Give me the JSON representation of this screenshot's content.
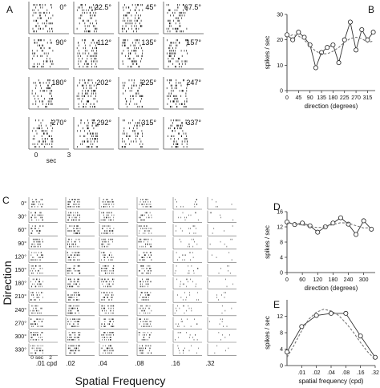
{
  "panels": {
    "A": {
      "letter": "A",
      "angles": [
        "0°",
        "22.5°",
        "45°",
        "67.5°",
        "90°",
        "112°",
        "135°",
        "157°",
        "180°",
        "202°",
        "225°",
        "247°",
        "270°",
        "292°",
        "315°",
        "337°"
      ],
      "time_axis": {
        "start": "0",
        "label": "sec",
        "end": "3"
      }
    },
    "C": {
      "letter": "C",
      "rows": [
        "0°",
        "30°",
        "60°",
        "90°",
        "120°",
        "150°",
        "180°",
        "210°",
        "240°",
        "270°",
        "300°",
        "330°"
      ],
      "cols": [
        ".01 cpd",
        ".02",
        ".04",
        ".08",
        ".16",
        ".32"
      ],
      "ylabel": "Direction",
      "xlabel": "Spatial Frequency",
      "time_axis": {
        "start": "0",
        "label": "sec",
        "end": "2"
      }
    },
    "B": {
      "letter": "B"
    },
    "D": {
      "letter": "D"
    },
    "E": {
      "letter": "E"
    }
  },
  "chart_data": [
    {
      "panel": "B",
      "type": "line",
      "xlabel": "direction (degrees)",
      "ylabel": "spikes / sec",
      "xlim": [
        0,
        345
      ],
      "ylim": [
        0,
        30
      ],
      "xticks": [
        0,
        45,
        90,
        135,
        180,
        225,
        270,
        315
      ],
      "yticks": [
        0,
        10,
        20,
        30
      ],
      "series": [
        {
          "style": "solid-markers",
          "x": [
            0,
            22.5,
            45,
            67.5,
            90,
            112.5,
            135,
            157.5,
            180,
            202.5,
            225,
            247.5,
            270,
            292.5,
            315,
            337.5
          ],
          "y": [
            22,
            20,
            23,
            21,
            18,
            9,
            15,
            17,
            18,
            11,
            20,
            27,
            16,
            24,
            20,
            23
          ]
        },
        {
          "style": "dashed-fit",
          "x": [
            0,
            22.5,
            45,
            67.5,
            90,
            112.5,
            135,
            157.5,
            180,
            202.5,
            225,
            247.5,
            270,
            292.5,
            315,
            337.5
          ],
          "y": [
            21,
            22,
            21.5,
            20,
            17.5,
            15.5,
            14.5,
            14.5,
            15.5,
            17,
            19,
            20.5,
            21,
            20.5,
            19,
            19.5
          ]
        }
      ]
    },
    {
      "panel": "D",
      "type": "line",
      "xlabel": "direction (degrees)",
      "ylabel": "spikes / sec",
      "xlim": [
        0,
        345
      ],
      "ylim": [
        0,
        16
      ],
      "xticks": [
        0,
        60,
        120,
        180,
        240,
        300
      ],
      "yticks": [
        0,
        4,
        8,
        12,
        16
      ],
      "series": [
        {
          "style": "solid-markers",
          "x": [
            0,
            30,
            60,
            90,
            120,
            150,
            180,
            210,
            240,
            270,
            300,
            330
          ],
          "y": [
            13.3,
            12.6,
            13.0,
            12.3,
            10.6,
            12.0,
            13.0,
            14.4,
            12.7,
            10.0,
            13.6,
            11.4
          ]
        },
        {
          "style": "dashed-fit",
          "x": [
            0,
            30,
            60,
            90,
            120,
            150,
            180,
            210,
            240,
            270,
            300,
            330
          ],
          "y": [
            13.0,
            12.8,
            12.5,
            12.1,
            11.8,
            12.0,
            12.6,
            13.1,
            13.0,
            12.3,
            11.7,
            11.8
          ]
        }
      ]
    },
    {
      "panel": "E",
      "type": "line",
      "xlabel": "spatial frequency (cpd)",
      "ylabel": "spikes / sec",
      "xscale": "log",
      "xlim": [
        0.005,
        0.32
      ],
      "ylim": [
        0,
        16
      ],
      "xticks": [
        0.01,
        0.02,
        0.04,
        0.08,
        0.16,
        0.32
      ],
      "xticklabels": [
        ".01",
        ".02",
        ".04",
        ".08",
        ".16",
        ".32"
      ],
      "yticks": [
        0,
        4,
        8,
        12
      ],
      "series": [
        {
          "style": "solid-markers",
          "x": [
            0.005,
            0.01,
            0.02,
            0.04,
            0.08,
            0.16,
            0.32
          ],
          "y": [
            3.3,
            9.5,
            12.2,
            12.7,
            12.7,
            7.2,
            2.0
          ]
        },
        {
          "style": "dashed-fit",
          "x": [
            0.005,
            0.007,
            0.01,
            0.014,
            0.02,
            0.028,
            0.04,
            0.057,
            0.08,
            0.113,
            0.16,
            0.226,
            0.32
          ],
          "y": [
            2.0,
            5.0,
            8.5,
            11.3,
            13.0,
            13.7,
            13.3,
            12.2,
            10.4,
            8.2,
            5.6,
            3.3,
            1.5
          ]
        }
      ]
    }
  ]
}
